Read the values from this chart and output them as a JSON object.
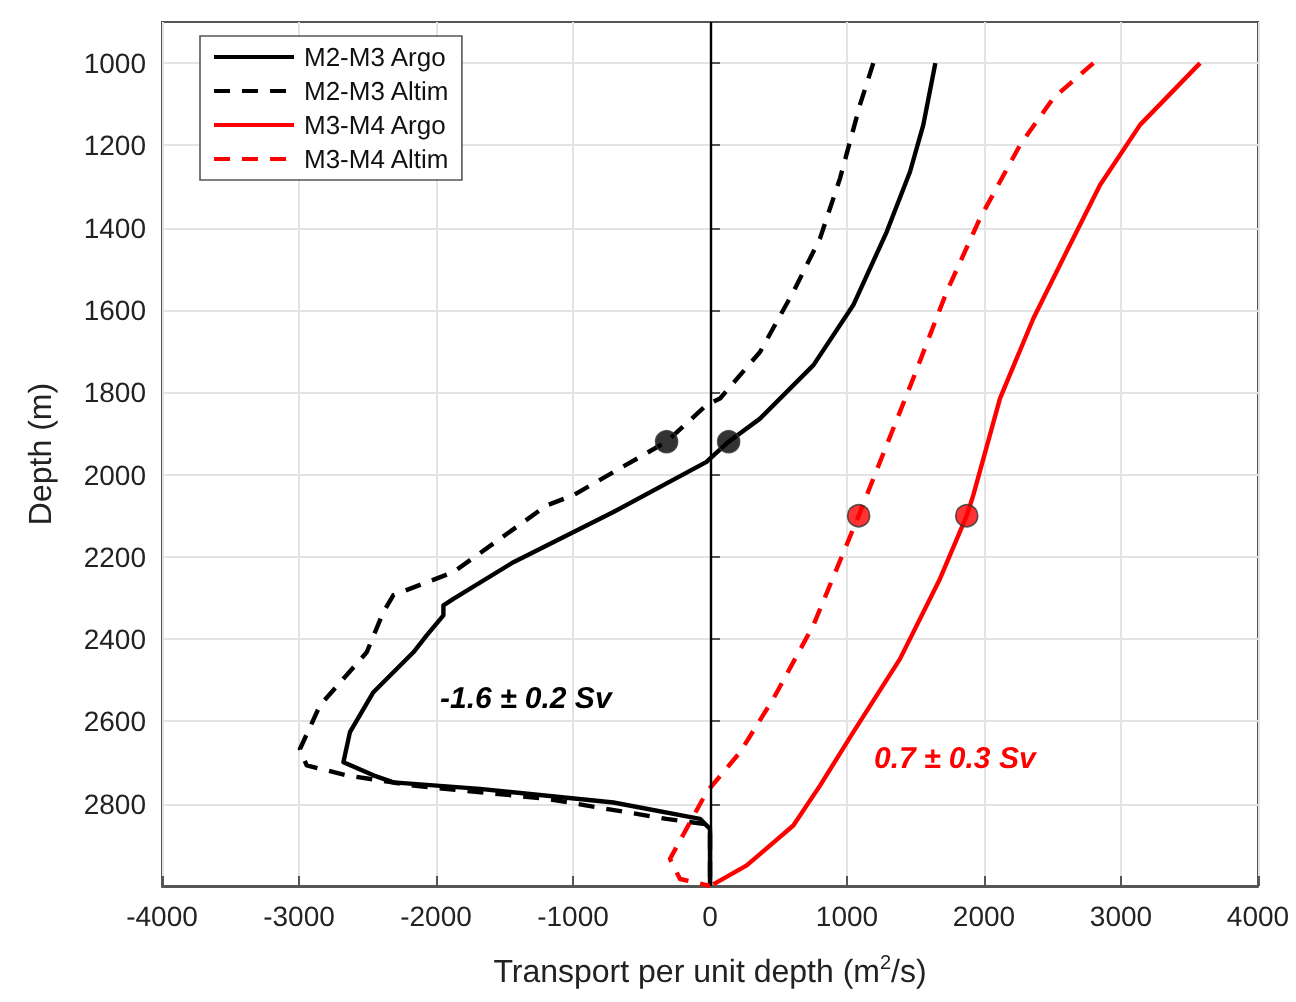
{
  "chart_data": {
    "type": "line",
    "xlabel": "Transport per unit depth (m$^{2}$/s)",
    "ylabel": "Depth (m)",
    "xlim": [
      -4000,
      4000
    ],
    "xticks": [
      -4000,
      -3000,
      -2000,
      -1000,
      0,
      1000,
      2000,
      3000,
      4000
    ],
    "ylim": [
      3000,
      900
    ],
    "yticks": [
      1000,
      1200,
      1400,
      1600,
      1800,
      2000,
      2200,
      2400,
      2600,
      2800
    ],
    "grid": true,
    "legend": "top left",
    "marker": "none",
    "series": [
      {
        "name": "M2-M3 Argo",
        "color": "#000000",
        "line_style": "solid",
        "x": [
          1645,
          1557,
          1460,
          1290,
          1046,
          755,
          365,
          136,
          0,
          -25,
          -705,
          -1435,
          -1873,
          -1946,
          -1946,
          -2068,
          -2165,
          -2457,
          -2628,
          -2676,
          -2457,
          -2311,
          -1679,
          -705,
          -73,
          0,
          0
        ],
        "values": [
          1000,
          1150,
          1264,
          1410,
          1588,
          1734,
          1864,
          1920,
          1961,
          1969,
          2091,
          2213,
          2302,
          2318,
          2342,
          2391,
          2432,
          2529,
          2626,
          2699,
          2731,
          2748,
          2764,
          2797,
          2837,
          2861,
          3000
        ]
      },
      {
        "name": "M2-M3 Altim",
        "color": "#000000",
        "line_style": "dashed",
        "x": [
          1192,
          1095,
          949,
          803,
          608,
          365,
          73,
          -25,
          -317,
          -997,
          -1192,
          -1873,
          -2311,
          -2384,
          -2506,
          -2847,
          -2993,
          -2944,
          -2652,
          -2165,
          -1192,
          -317,
          -25,
          0,
          0
        ],
        "values": [
          1000,
          1101,
          1280,
          1426,
          1556,
          1702,
          1815,
          1831,
          1920,
          2050,
          2075,
          2237,
          2293,
          2334,
          2432,
          2561,
          2667,
          2707,
          2731,
          2756,
          2788,
          2837,
          2850,
          2860,
          3000
        ]
      },
      {
        "name": "M3-M4 Argo",
        "color": "#ff0000",
        "line_style": "solid",
        "x": [
          3577,
          3139,
          2847,
          2603,
          2361,
          2117,
          1922,
          1874,
          1679,
          1387,
          1046,
          803,
          608,
          268,
          24
        ],
        "values": [
          1000,
          1150,
          1296,
          1458,
          1620,
          1815,
          2050,
          2100,
          2253,
          2448,
          2626,
          2756,
          2853,
          2950,
          2996
        ]
      },
      {
        "name": "M3-M4 Altim",
        "color": "#ff0000",
        "line_style": "dashed",
        "x": [
          2798,
          2506,
          2263,
          1971,
          1727,
          1484,
          1192,
          1085,
          755,
          462,
          219,
          -25,
          -292,
          -219,
          0
        ],
        "values": [
          1000,
          1085,
          1199,
          1377,
          1556,
          1766,
          2010,
          2100,
          2366,
          2545,
          2675,
          2772,
          2934,
          2983,
          3000
        ]
      },
      {
        "type": "scatter",
        "marker": "circle",
        "color": "#000000",
        "x": [
          -317,
          136
        ],
        "values": [
          1920,
          1920
        ]
      },
      {
        "type": "scatter",
        "marker": "circle",
        "color": "#ff0000",
        "x": [
          1085,
          1874
        ],
        "values": [
          2100,
          2100
        ]
      }
    ],
    "ref_lines": [
      {
        "axis": "x",
        "value": 0,
        "color": "#000000",
        "line_style": "solid"
      }
    ],
    "annotations": [
      "-1.6 ± 0.2 Sv",
      "0.7 ± 0.3 Sv"
    ]
  }
}
